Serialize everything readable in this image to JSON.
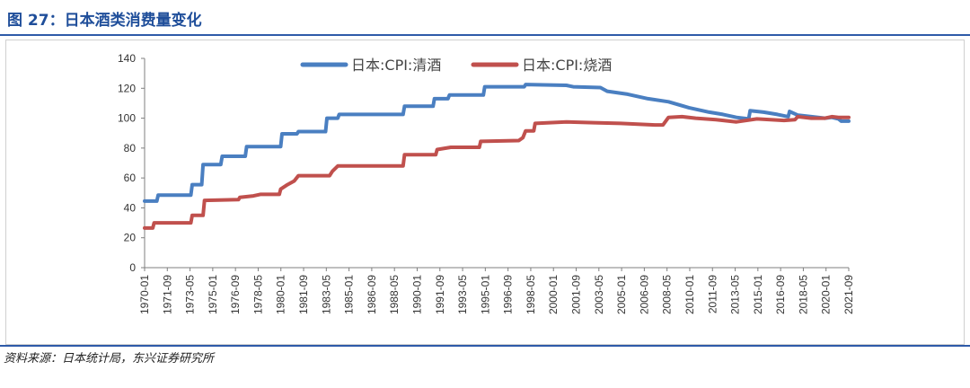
{
  "header": {
    "title": "图 27：日本酒类消费量变化"
  },
  "footer": {
    "source": "资料来源：日本统计局，东兴证券研究所"
  },
  "chart_data": {
    "type": "line",
    "xlabel": "",
    "ylabel": "",
    "x_range": [
      1970.0,
      2021.75
    ],
    "ylim": [
      0,
      140
    ],
    "yticks": [
      0,
      20,
      40,
      60,
      80,
      100,
      120,
      140
    ],
    "xticks": [
      "1970-01",
      "1971-09",
      "1973-05",
      "1975-01",
      "1976-09",
      "1978-05",
      "1980-01",
      "1981-09",
      "1983-05",
      "1985-01",
      "1986-09",
      "1988-05",
      "1990-01",
      "1991-09",
      "1993-05",
      "1995-01",
      "1996-09",
      "1998-05",
      "2000-01",
      "2001-09",
      "2003-05",
      "2005-01",
      "2006-09",
      "2008-05",
      "2010-01",
      "2011-09",
      "2013-05",
      "2015-01",
      "2016-09",
      "2018-05",
      "2020-01",
      "2021-09"
    ],
    "grid": false,
    "legend_position": "top",
    "series": [
      {
        "name": "日本:CPI:清酒",
        "color": "#4a7fc1",
        "points": [
          [
            1970.0,
            44.5
          ],
          [
            1970.9,
            44.5
          ],
          [
            1971.0,
            48.5
          ],
          [
            1973.4,
            48.5
          ],
          [
            1973.5,
            55.5
          ],
          [
            1974.2,
            55.5
          ],
          [
            1974.3,
            69.0
          ],
          [
            1975.6,
            69.0
          ],
          [
            1975.7,
            74.5
          ],
          [
            1977.4,
            74.5
          ],
          [
            1977.5,
            81.0
          ],
          [
            1980.0,
            81.0
          ],
          [
            1980.1,
            89.5
          ],
          [
            1981.2,
            89.5
          ],
          [
            1981.3,
            91.0
          ],
          [
            1983.3,
            91.0
          ],
          [
            1983.4,
            100.0
          ],
          [
            1984.2,
            100.0
          ],
          [
            1984.3,
            102.5
          ],
          [
            1989.0,
            102.5
          ],
          [
            1989.1,
            108.0
          ],
          [
            1991.2,
            108.0
          ],
          [
            1991.3,
            113.0
          ],
          [
            1992.3,
            113.0
          ],
          [
            1992.4,
            115.5
          ],
          [
            1994.9,
            115.5
          ],
          [
            1995.0,
            121.0
          ],
          [
            1997.9,
            121.0
          ],
          [
            1998.0,
            122.5
          ],
          [
            2001.0,
            122.0
          ],
          [
            2001.5,
            121.0
          ],
          [
            2003.5,
            120.5
          ],
          [
            2004.0,
            118.0
          ],
          [
            2005.5,
            116.0
          ],
          [
            2007.0,
            113.0
          ],
          [
            2008.5,
            111.0
          ],
          [
            2010.0,
            107.0
          ],
          [
            2011.5,
            104.0
          ],
          [
            2012.5,
            102.5
          ],
          [
            2013.5,
            100.5
          ],
          [
            2014.4,
            99.5
          ],
          [
            2014.5,
            105.0
          ],
          [
            2015.5,
            104.0
          ],
          [
            2016.5,
            102.5
          ],
          [
            2017.3,
            101.0
          ],
          [
            2017.4,
            104.5
          ],
          [
            2018.0,
            102.0
          ],
          [
            2019.0,
            101.0
          ],
          [
            2020.0,
            100.0
          ],
          [
            2020.5,
            100.5
          ],
          [
            2021.0,
            99.5
          ],
          [
            2021.2,
            98.0
          ],
          [
            2021.75,
            98.0
          ]
        ]
      },
      {
        "name": "日本:CPI:烧酒",
        "color": "#c0504d",
        "points": [
          [
            1970.0,
            26.5
          ],
          [
            1970.6,
            26.5
          ],
          [
            1970.7,
            30.0
          ],
          [
            1973.4,
            30.0
          ],
          [
            1973.5,
            35.0
          ],
          [
            1974.3,
            35.0
          ],
          [
            1974.4,
            45.0
          ],
          [
            1976.9,
            45.5
          ],
          [
            1977.0,
            47.0
          ],
          [
            1978.0,
            48.0
          ],
          [
            1978.5,
            49.0
          ],
          [
            1979.9,
            49.0
          ],
          [
            1980.0,
            52.5
          ],
          [
            1980.5,
            55.5
          ],
          [
            1981.0,
            58.0
          ],
          [
            1981.3,
            61.5
          ],
          [
            1983.6,
            61.5
          ],
          [
            1983.8,
            64.5
          ],
          [
            1984.2,
            68.0
          ],
          [
            1989.0,
            68.0
          ],
          [
            1989.1,
            75.5
          ],
          [
            1991.4,
            75.5
          ],
          [
            1991.5,
            79.0
          ],
          [
            1992.5,
            80.5
          ],
          [
            1994.6,
            80.5
          ],
          [
            1994.7,
            84.5
          ],
          [
            1997.5,
            85.0
          ],
          [
            1997.8,
            87.0
          ],
          [
            1998.0,
            91.5
          ],
          [
            1998.6,
            91.5
          ],
          [
            1998.7,
            96.5
          ],
          [
            2001.0,
            97.5
          ],
          [
            2003.0,
            97.0
          ],
          [
            2005.0,
            96.5
          ],
          [
            2007.5,
            95.5
          ],
          [
            2008.1,
            95.5
          ],
          [
            2008.5,
            100.5
          ],
          [
            2009.5,
            101.0
          ],
          [
            2010.5,
            100.0
          ],
          [
            2012.0,
            99.0
          ],
          [
            2013.5,
            97.5
          ],
          [
            2015.0,
            99.5
          ],
          [
            2016.0,
            99.0
          ],
          [
            2017.0,
            98.5
          ],
          [
            2017.8,
            99.0
          ],
          [
            2018.0,
            101.0
          ],
          [
            2019.0,
            100.0
          ],
          [
            2020.0,
            100.0
          ],
          [
            2020.5,
            101.0
          ],
          [
            2021.0,
            100.5
          ],
          [
            2021.75,
            100.5
          ]
        ]
      }
    ]
  }
}
